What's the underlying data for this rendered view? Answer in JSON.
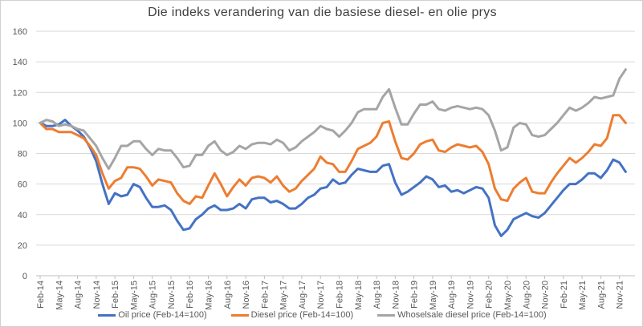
{
  "chart_data": {
    "type": "line",
    "title": "Die indeks verandering van die basiese diesel- en olie prys",
    "xlabel": "",
    "ylabel": "",
    "ylim": [
      0,
      160
    ],
    "yticks": [
      0,
      20,
      40,
      60,
      80,
      100,
      120,
      140,
      160
    ],
    "grid": true,
    "legend_position": "bottom",
    "x_start": "Feb-14",
    "x_end": "Dec-21",
    "frequency": "monthly",
    "xtick_labels": [
      "Feb-14",
      "May-14",
      "Aug-14",
      "Nov-14",
      "Feb-15",
      "May-15",
      "Aug-15",
      "Nov-15",
      "Feb-16",
      "May-16",
      "Aug-16",
      "Nov-16",
      "Feb-17",
      "May-17",
      "Aug-17",
      "Nov-17",
      "Feb-18",
      "May-18",
      "Aug-18",
      "Nov-18",
      "Feb-19",
      "May-19",
      "Aug-19",
      "Nov-19",
      "Feb-20",
      "May-20",
      "Aug-20",
      "Nov-20",
      "Feb-21",
      "May-21",
      "Aug-21",
      "Nov-21"
    ],
    "series": [
      {
        "name": "Oil price (Feb-14=100)",
        "color": "#4472C4",
        "values": [
          100,
          98,
          98,
          99,
          102,
          98,
          95,
          91,
          84,
          75,
          60,
          47,
          54,
          52,
          53,
          60,
          58,
          51,
          45,
          45,
          46,
          43,
          36,
          30,
          31,
          37,
          40,
          44,
          46,
          43,
          43,
          44,
          47,
          44,
          50,
          51,
          51,
          48,
          49,
          47,
          44,
          44,
          47,
          51,
          53,
          57,
          58,
          63,
          60,
          61,
          66,
          70,
          69,
          68,
          68,
          72,
          73,
          61,
          53,
          55,
          58,
          61,
          65,
          63,
          58,
          59,
          55,
          56,
          54,
          56,
          58,
          57,
          51,
          33,
          26,
          30,
          37,
          39,
          41,
          39,
          38,
          41,
          46,
          51,
          56,
          60,
          60,
          63,
          67,
          67,
          64,
          69,
          76,
          74,
          68
        ]
      },
      {
        "name": "Diesel price (Feb-14=100)",
        "color": "#ED7D31",
        "values": [
          100,
          96,
          96,
          94,
          94,
          94,
          92,
          90,
          85,
          79,
          67,
          57,
          62,
          64,
          71,
          71,
          70,
          65,
          59,
          63,
          62,
          61,
          54,
          49,
          47,
          52,
          51,
          59,
          67,
          60,
          52,
          58,
          63,
          59,
          64,
          65,
          64,
          61,
          65,
          59,
          55,
          57,
          62,
          66,
          70,
          78,
          74,
          73,
          68,
          68,
          75,
          83,
          85,
          87,
          91,
          100,
          101,
          88,
          77,
          76,
          80,
          86,
          88,
          89,
          82,
          81,
          84,
          86,
          85,
          84,
          85,
          81,
          73,
          57,
          50,
          49,
          57,
          61,
          64,
          55,
          54,
          54,
          61,
          67,
          72,
          77,
          74,
          77,
          81,
          86,
          85,
          90,
          105,
          105,
          100
        ]
      },
      {
        "name": "Whoselsale diesel price (Feb-14=100)",
        "color": "#A5A5A5",
        "values": [
          100,
          102,
          101,
          98,
          99,
          98,
          96,
          95,
          90,
          85,
          77,
          70,
          77,
          85,
          85,
          88,
          88,
          83,
          79,
          83,
          82,
          82,
          77,
          71,
          72,
          79,
          79,
          85,
          88,
          82,
          79,
          81,
          85,
          83,
          86,
          87,
          87,
          86,
          89,
          87,
          82,
          84,
          88,
          91,
          94,
          98,
          96,
          95,
          91,
          95,
          100,
          107,
          109,
          109,
          109,
          117,
          122,
          110,
          99,
          99,
          106,
          112,
          112,
          114,
          109,
          108,
          110,
          111,
          110,
          109,
          110,
          109,
          105,
          95,
          82,
          84,
          97,
          100,
          99,
          92,
          91,
          92,
          96,
          100,
          105,
          110,
          108,
          110,
          113,
          117,
          116,
          117,
          118,
          129,
          135
        ]
      }
    ]
  }
}
